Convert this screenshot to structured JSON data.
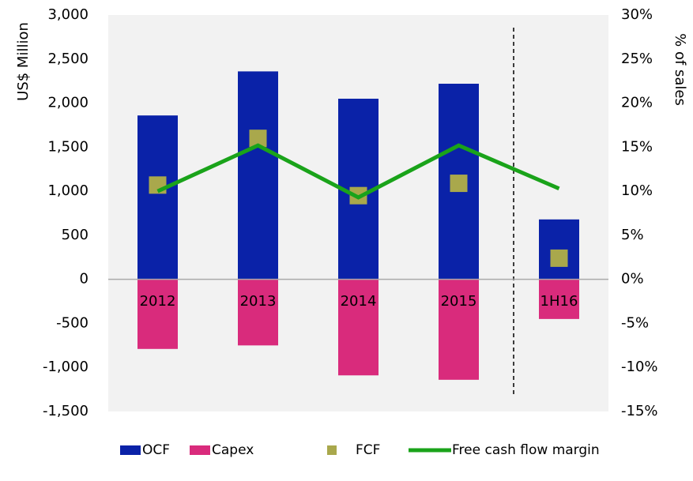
{
  "chart_data": {
    "type": "bar",
    "categories": [
      "2012",
      "2013",
      "2014",
      "2015",
      "1H16"
    ],
    "y_label": "US$ Million",
    "y2_label": "% of sales",
    "ylim": [
      -1500,
      3000
    ],
    "yticks": [
      {
        "value": -1500,
        "label": "-1,500"
      },
      {
        "value": -1000,
        "label": "-1,000"
      },
      -500,
      0,
      500,
      {
        "value": 1000,
        "label": "1,000"
      },
      {
        "value": 1500,
        "label": "1,500"
      },
      {
        "value": 2000,
        "label": "2,000"
      },
      {
        "value": 2500,
        "label": "2,500"
      },
      {
        "value": 3000,
        "label": "3,000"
      }
    ],
    "y2lim": [
      -15,
      30
    ],
    "y2ticks": [
      {
        "value": -15,
        "label": "-15%"
      },
      {
        "value": -10,
        "label": "-10%"
      },
      {
        "value": -5,
        "label": "-5%"
      },
      {
        "value": 0,
        "label": "0%"
      },
      {
        "value": 5,
        "label": "5%"
      },
      {
        "value": 10,
        "label": "10%"
      },
      {
        "value": 15,
        "label": "15%"
      },
      {
        "value": 20,
        "label": "20%"
      },
      {
        "value": 25,
        "label": "25%"
      },
      {
        "value": 30,
        "label": "30%"
      }
    ],
    "series": [
      {
        "name": "OCF",
        "type": "bar",
        "color": "#0a22a8",
        "values": [
          1860,
          2360,
          2050,
          2220,
          680
        ]
      },
      {
        "name": "Capex",
        "type": "bar",
        "color": "#d92b7c",
        "values": [
          -790,
          -750,
          -1090,
          -1140,
          -450
        ]
      },
      {
        "name": "FCF",
        "type": "marker",
        "color": "#a9a84c",
        "values": [
          1070,
          1600,
          950,
          1090,
          240
        ]
      },
      {
        "name": "Free cash flow margin",
        "type": "line",
        "axis": "y2",
        "color": "#1aa31a",
        "values": [
          10,
          15.2,
          9.3,
          15.2,
          10.3
        ]
      }
    ],
    "legend": "bottom"
  }
}
